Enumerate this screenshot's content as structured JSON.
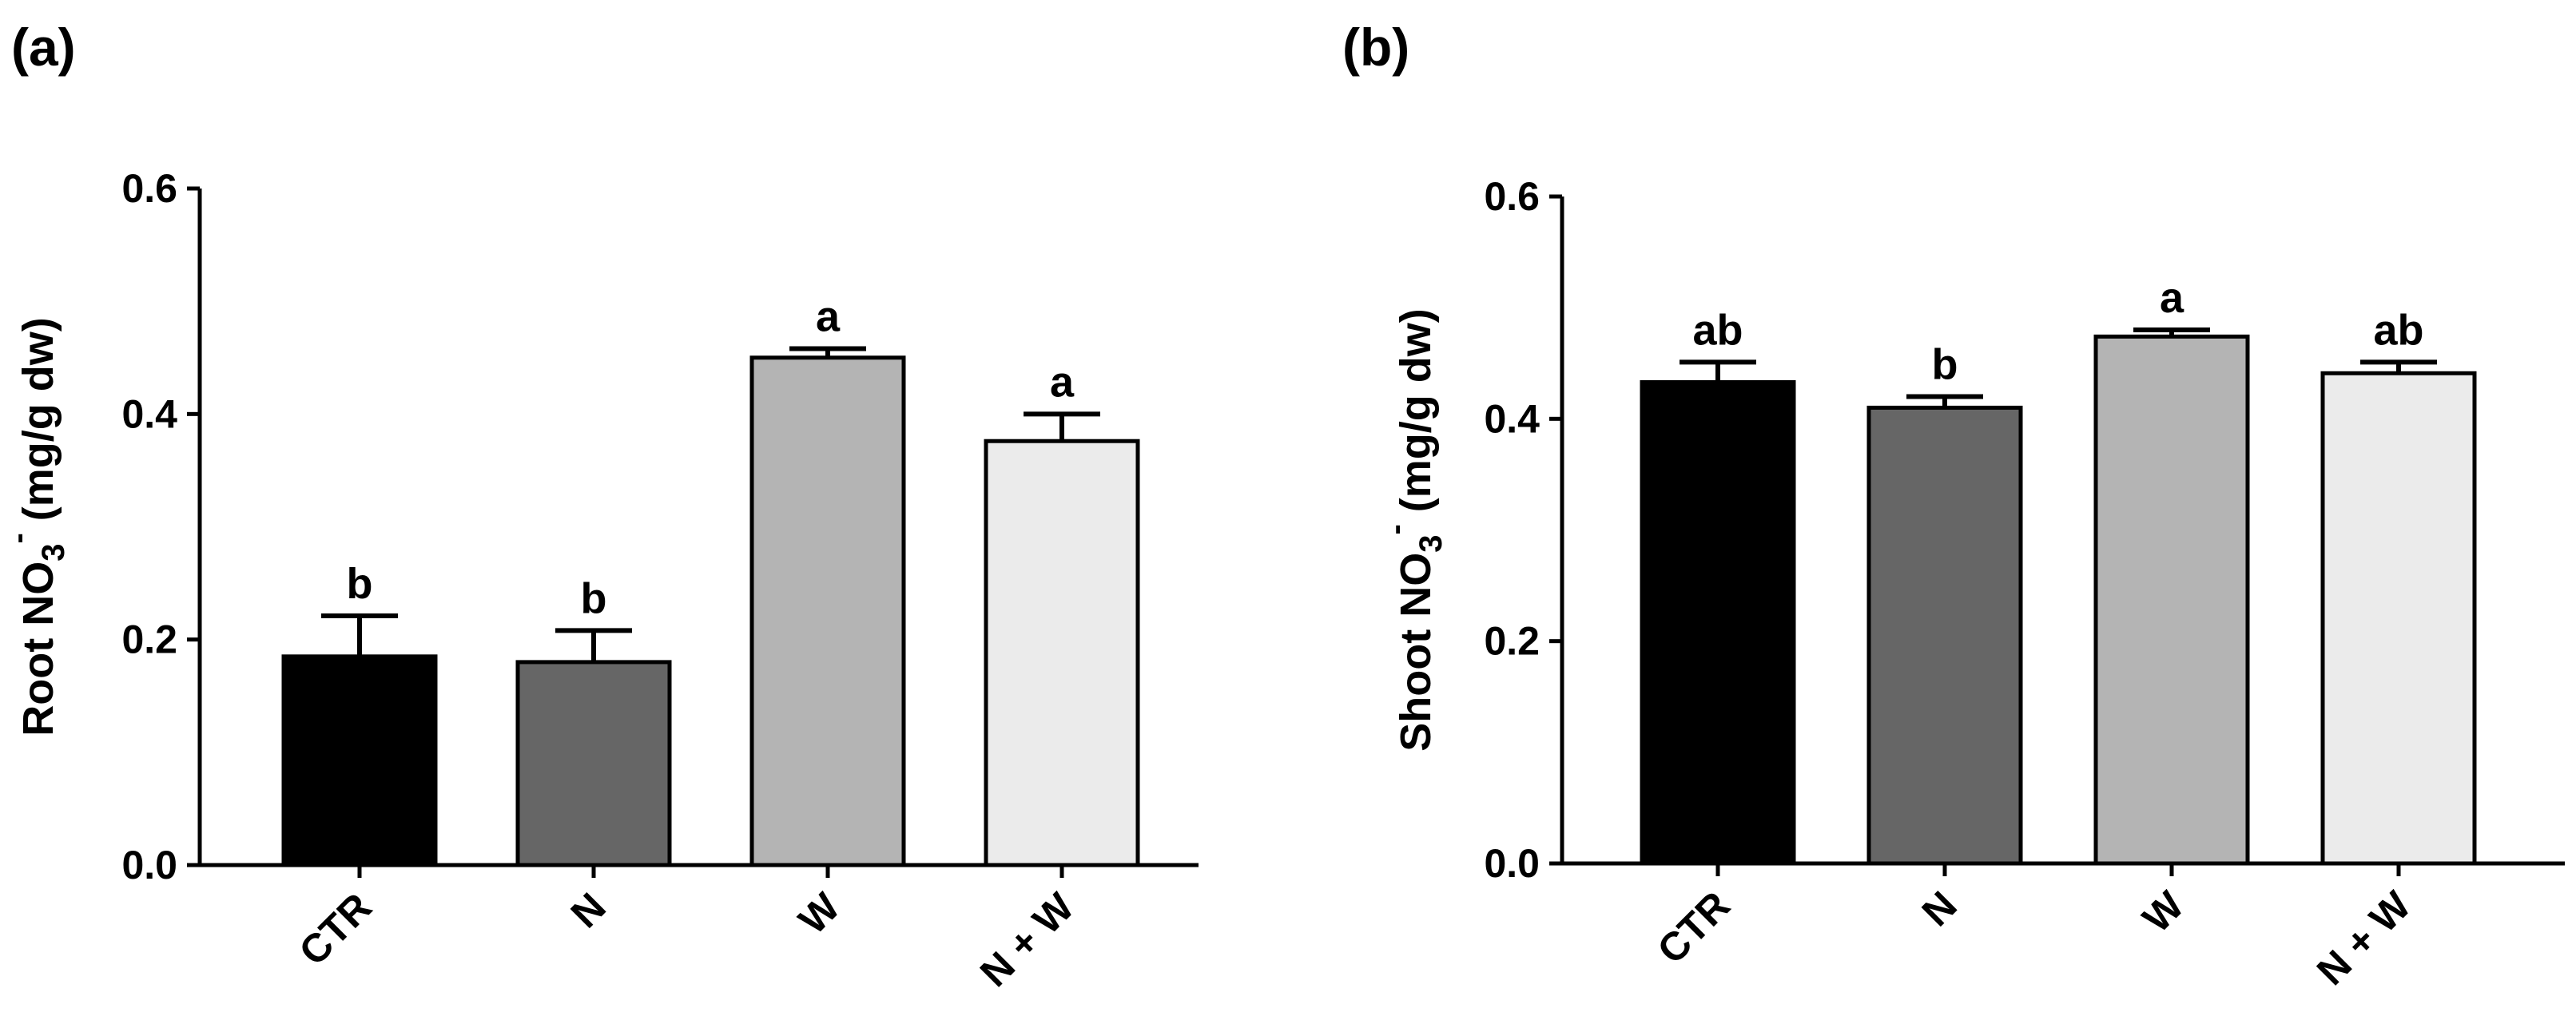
{
  "chart_data": [
    {
      "type": "bar",
      "panel_label": "(a)",
      "ylabel": {
        "prefix": "Root NO",
        "sub": "3",
        "sup": "-",
        "suffix": " (mg/g dw)"
      },
      "categories": [
        "CTR",
        "N",
        "W",
        "N + W"
      ],
      "values": [
        0.185,
        0.18,
        0.45,
        0.376
      ],
      "errors": [
        0.036,
        0.028,
        0.008,
        0.024
      ],
      "significance": [
        "b",
        "b",
        "a",
        "a"
      ],
      "colors": [
        "#000000",
        "#666666",
        "#b4b4b4",
        "#ebebeb"
      ],
      "ylim": [
        0,
        0.6
      ],
      "yticks": [
        "0.0",
        "0.2",
        "0.4",
        "0.6"
      ]
    },
    {
      "type": "bar",
      "panel_label": "(b)",
      "ylabel": {
        "prefix": "Shoot NO",
        "sub": "3",
        "sup": "-",
        "suffix": " (mg/g dw)"
      },
      "categories": [
        "CTR",
        "N",
        "W",
        "N + W"
      ],
      "values": [
        0.433,
        0.41,
        0.474,
        0.441
      ],
      "errors": [
        0.018,
        0.01,
        0.006,
        0.01
      ],
      "significance": [
        "ab",
        "b",
        "a",
        "ab"
      ],
      "colors": [
        "#000000",
        "#666666",
        "#b4b4b4",
        "#ebebeb"
      ],
      "ylim": [
        0,
        0.6
      ],
      "yticks": [
        "0.0",
        "0.2",
        "0.4",
        "0.6"
      ]
    }
  ]
}
